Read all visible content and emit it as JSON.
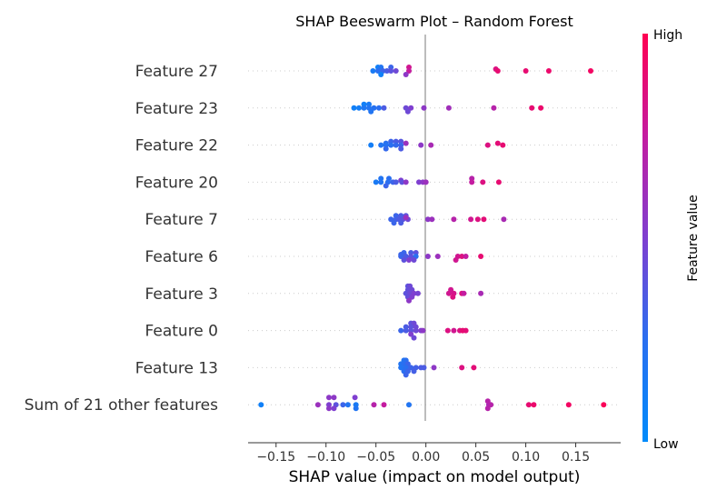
{
  "chart_data": {
    "type": "scatter",
    "title": "SHAP Beeswarm Plot – Random Forest",
    "xlabel": "SHAP value (impact on model output)",
    "xlim": [
      -0.178,
      0.195
    ],
    "x_ticks": [
      -0.15,
      -0.1,
      -0.05,
      0.0,
      0.05,
      0.1,
      0.15
    ],
    "x_tick_labels": [
      "−0.15",
      "−0.10",
      "−0.05",
      "0.00",
      "0.05",
      "0.10",
      "0.15"
    ],
    "colorbar": {
      "label": "Feature value",
      "high_label": "High",
      "low_label": "Low",
      "low_color": "#008bfb",
      "high_color": "#ff0052"
    },
    "grid": "dotted horizontal row lines",
    "features": [
      {
        "name": "Feature 27",
        "points": [
          [
            -0.048,
            0.1,
            -4
          ],
          [
            -0.045,
            0.2,
            -4
          ],
          [
            -0.035,
            0.3,
            -4
          ],
          [
            -0.017,
            0.8,
            -4
          ],
          [
            -0.053,
            0.15,
            0
          ],
          [
            -0.048,
            0.25,
            0
          ],
          [
            -0.043,
            0.3,
            0
          ],
          [
            -0.039,
            0.35,
            0
          ],
          [
            -0.035,
            0.4,
            0
          ],
          [
            -0.03,
            0.45,
            0
          ],
          [
            -0.017,
            0.75,
            0
          ],
          [
            -0.045,
            0.1,
            4
          ],
          [
            -0.02,
            0.55,
            4
          ],
          [
            0.07,
            0.85,
            -2
          ],
          [
            0.072,
            0.9,
            0
          ],
          [
            0.1,
            0.9,
            0
          ],
          [
            0.123,
            0.92,
            0
          ],
          [
            0.165,
            0.95,
            0
          ]
        ]
      },
      {
        "name": "Feature 23",
        "points": [
          [
            -0.062,
            0.1,
            -4
          ],
          [
            -0.057,
            0.15,
            -4
          ],
          [
            -0.067,
            0.12,
            0
          ],
          [
            -0.062,
            0.18,
            0
          ],
          [
            -0.057,
            0.2,
            0
          ],
          [
            -0.052,
            0.22,
            0
          ],
          [
            -0.047,
            0.25,
            0
          ],
          [
            -0.072,
            0.1,
            0
          ],
          [
            -0.042,
            0.35,
            0
          ],
          [
            -0.02,
            0.45,
            0
          ],
          [
            -0.015,
            0.5,
            0
          ],
          [
            -0.002,
            0.55,
            0
          ],
          [
            0.023,
            0.62,
            0
          ],
          [
            0.068,
            0.7,
            0
          ],
          [
            0.106,
            0.9,
            0
          ],
          [
            0.115,
            0.92,
            0
          ],
          [
            -0.055,
            0.2,
            4
          ],
          [
            -0.018,
            0.45,
            4
          ]
        ]
      },
      {
        "name": "Feature 22",
        "points": [
          [
            -0.035,
            0.3,
            -4
          ],
          [
            -0.03,
            0.35,
            -4
          ],
          [
            -0.025,
            0.38,
            -4
          ],
          [
            -0.04,
            0.25,
            -2
          ],
          [
            -0.02,
            0.6,
            -2
          ],
          [
            -0.045,
            0.2,
            0
          ],
          [
            -0.04,
            0.22,
            0
          ],
          [
            -0.035,
            0.25,
            0
          ],
          [
            -0.03,
            0.28,
            0
          ],
          [
            -0.025,
            0.3,
            0
          ],
          [
            -0.055,
            0.12,
            0
          ],
          [
            -0.005,
            0.55,
            0
          ],
          [
            0.005,
            0.65,
            0
          ],
          [
            0.062,
            0.85,
            0
          ],
          [
            0.072,
            0.88,
            -2
          ],
          [
            0.077,
            0.9,
            0
          ],
          [
            -0.04,
            0.28,
            4
          ],
          [
            -0.025,
            0.35,
            4
          ]
        ]
      },
      {
        "name": "Feature 20",
        "points": [
          [
            -0.045,
            0.2,
            -4
          ],
          [
            -0.037,
            0.25,
            -4
          ],
          [
            -0.025,
            0.5,
            -2
          ],
          [
            -0.05,
            0.15,
            0
          ],
          [
            -0.045,
            0.2,
            0
          ],
          [
            -0.038,
            0.25,
            0
          ],
          [
            -0.033,
            0.3,
            0
          ],
          [
            -0.03,
            0.35,
            0
          ],
          [
            -0.024,
            0.4,
            0
          ],
          [
            -0.02,
            0.55,
            0
          ],
          [
            -0.007,
            0.5,
            0
          ],
          [
            -0.003,
            0.55,
            0
          ],
          [
            0.0,
            0.6,
            0
          ],
          [
            0.046,
            0.7,
            -4
          ],
          [
            0.046,
            0.75,
            0
          ],
          [
            0.057,
            0.85,
            0
          ],
          [
            0.073,
            0.9,
            0
          ],
          [
            -0.04,
            0.3,
            4
          ]
        ]
      },
      {
        "name": "Feature 7",
        "points": [
          [
            -0.03,
            0.3,
            -4
          ],
          [
            -0.025,
            0.35,
            -4
          ],
          [
            -0.02,
            0.4,
            -4
          ],
          [
            -0.035,
            0.3,
            0
          ],
          [
            -0.03,
            0.32,
            0
          ],
          [
            -0.027,
            0.35,
            0
          ],
          [
            -0.023,
            0.4,
            0
          ],
          [
            -0.018,
            0.45,
            0
          ],
          [
            -0.02,
            0.6,
            -2
          ],
          [
            0.002,
            0.55,
            0
          ],
          [
            0.006,
            0.6,
            0
          ],
          [
            0.028,
            0.7,
            0
          ],
          [
            0.045,
            0.8,
            0
          ],
          [
            0.052,
            0.85,
            0
          ],
          [
            0.058,
            0.88,
            0
          ],
          [
            0.078,
            0.65,
            0
          ],
          [
            -0.032,
            0.3,
            4
          ],
          [
            -0.025,
            0.35,
            4
          ]
        ]
      },
      {
        "name": "Feature 6",
        "points": [
          [
            -0.022,
            0.3,
            -4
          ],
          [
            -0.015,
            0.35,
            -4
          ],
          [
            -0.01,
            0.4,
            -4
          ],
          [
            -0.025,
            0.3,
            0
          ],
          [
            -0.02,
            0.35,
            0
          ],
          [
            -0.015,
            0.4,
            0
          ],
          [
            -0.01,
            0.25,
            0
          ],
          [
            0.002,
            0.55,
            0
          ],
          [
            0.012,
            0.6,
            0
          ],
          [
            0.032,
            0.8,
            0
          ],
          [
            0.036,
            0.85,
            0
          ],
          [
            0.04,
            0.75,
            0
          ],
          [
            0.055,
            0.9,
            0
          ],
          [
            -0.022,
            0.4,
            4
          ],
          [
            -0.017,
            0.5,
            4
          ],
          [
            -0.012,
            0.45,
            4
          ],
          [
            0.03,
            0.8,
            4
          ],
          [
            -0.025,
            0.3,
            -2
          ]
        ]
      },
      {
        "name": "Feature 3",
        "points": [
          [
            -0.018,
            0.4,
            -8
          ],
          [
            -0.016,
            0.45,
            -8
          ],
          [
            -0.018,
            0.42,
            -4
          ],
          [
            -0.014,
            0.45,
            -4
          ],
          [
            -0.02,
            0.4,
            0
          ],
          [
            -0.016,
            0.45,
            0
          ],
          [
            -0.012,
            0.5,
            0
          ],
          [
            -0.008,
            0.48,
            0
          ],
          [
            0.023,
            0.8,
            0
          ],
          [
            0.028,
            0.82,
            0
          ],
          [
            0.036,
            0.85,
            0
          ],
          [
            0.038,
            0.75,
            0
          ],
          [
            0.055,
            0.65,
            0
          ],
          [
            -0.018,
            0.42,
            4
          ],
          [
            -0.014,
            0.5,
            4
          ],
          [
            -0.017,
            0.55,
            8
          ],
          [
            0.025,
            0.8,
            -4
          ],
          [
            0.027,
            0.85,
            4
          ]
        ]
      },
      {
        "name": "Feature 0",
        "points": [
          [
            -0.015,
            0.4,
            -8
          ],
          [
            -0.012,
            0.45,
            -8
          ],
          [
            -0.02,
            0.35,
            -4
          ],
          [
            -0.015,
            0.4,
            -4
          ],
          [
            -0.01,
            0.45,
            -4
          ],
          [
            -0.025,
            0.3,
            0
          ],
          [
            -0.02,
            0.35,
            0
          ],
          [
            -0.015,
            0.4,
            0
          ],
          [
            -0.01,
            0.45,
            0
          ],
          [
            -0.005,
            0.5,
            0
          ],
          [
            -0.003,
            0.55,
            0
          ],
          [
            0.022,
            0.85,
            0
          ],
          [
            0.028,
            0.8,
            0
          ],
          [
            0.034,
            0.85,
            0
          ],
          [
            0.037,
            0.9,
            0
          ],
          [
            0.04,
            0.88,
            0
          ],
          [
            -0.015,
            0.5,
            4
          ],
          [
            -0.012,
            0.45,
            8
          ]
        ]
      },
      {
        "name": "Feature 13",
        "points": [
          [
            -0.022,
            0.2,
            -8
          ],
          [
            -0.02,
            0.25,
            -8
          ],
          [
            -0.025,
            0.2,
            -4
          ],
          [
            -0.022,
            0.25,
            -4
          ],
          [
            -0.018,
            0.3,
            -4
          ],
          [
            -0.025,
            0.2,
            0
          ],
          [
            -0.02,
            0.25,
            0
          ],
          [
            -0.015,
            0.3,
            0
          ],
          [
            -0.01,
            0.32,
            0
          ],
          [
            -0.005,
            0.35,
            0
          ],
          [
            -0.002,
            0.35,
            0
          ],
          [
            0.008,
            0.55,
            0
          ],
          [
            0.036,
            0.85,
            0
          ],
          [
            0.048,
            0.88,
            0
          ],
          [
            -0.022,
            0.25,
            4
          ],
          [
            -0.018,
            0.3,
            4
          ],
          [
            -0.012,
            0.33,
            4
          ],
          [
            -0.02,
            0.3,
            8
          ]
        ]
      },
      {
        "name": "Sum of 21 other features",
        "points": [
          [
            -0.097,
            0.55,
            -8
          ],
          [
            -0.092,
            0.55,
            -8
          ],
          [
            -0.071,
            0.5,
            -8
          ],
          [
            -0.165,
            0.1,
            0
          ],
          [
            -0.108,
            0.6,
            0
          ],
          [
            -0.097,
            0.5,
            0
          ],
          [
            -0.09,
            0.4,
            0
          ],
          [
            -0.083,
            0.3,
            0
          ],
          [
            -0.078,
            0.2,
            0
          ],
          [
            -0.07,
            0.15,
            0
          ],
          [
            -0.052,
            0.7,
            0
          ],
          [
            -0.042,
            0.75,
            0
          ],
          [
            -0.017,
            0.2,
            0
          ],
          [
            0.063,
            0.65,
            0
          ],
          [
            0.065,
            0.7,
            0
          ],
          [
            0.103,
            0.9,
            0
          ],
          [
            0.108,
            0.92,
            0
          ],
          [
            0.143,
            0.95,
            0
          ],
          [
            0.178,
            0.98,
            0
          ],
          [
            -0.097,
            0.55,
            4
          ],
          [
            -0.092,
            0.5,
            4
          ],
          [
            -0.07,
            0.2,
            4
          ],
          [
            0.062,
            0.7,
            -4
          ],
          [
            0.062,
            0.7,
            4
          ]
        ]
      }
    ]
  }
}
